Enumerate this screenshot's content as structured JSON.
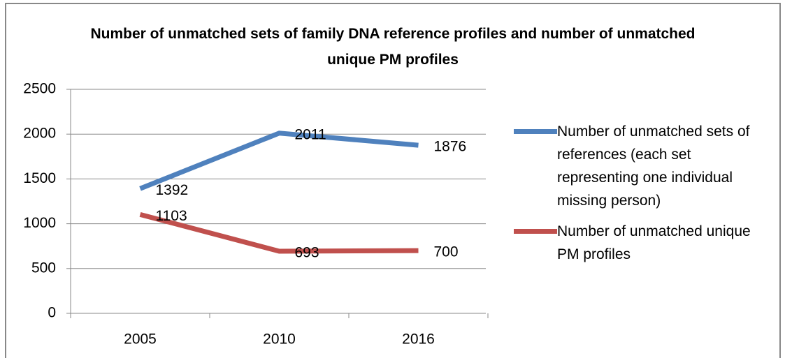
{
  "chart_data": {
    "type": "line",
    "title": "Number of unmatched sets of family DNA reference profiles and number of unmatched unique PM profiles",
    "categories": [
      "2005",
      "2010",
      "2016"
    ],
    "series": [
      {
        "name": "Number of unmatched sets of references (each set representing one individual missing person)",
        "color": "#4f81bd",
        "values": [
          1392,
          2011,
          1876
        ]
      },
      {
        "name": "Number of unmatched unique PM profiles",
        "color": "#c0504d",
        "values": [
          1103,
          693,
          700
        ]
      }
    ],
    "ylim": [
      0,
      2500
    ],
    "yticks": [
      0,
      500,
      1000,
      1500,
      2000,
      2500
    ],
    "grid": true,
    "legend": "right"
  }
}
